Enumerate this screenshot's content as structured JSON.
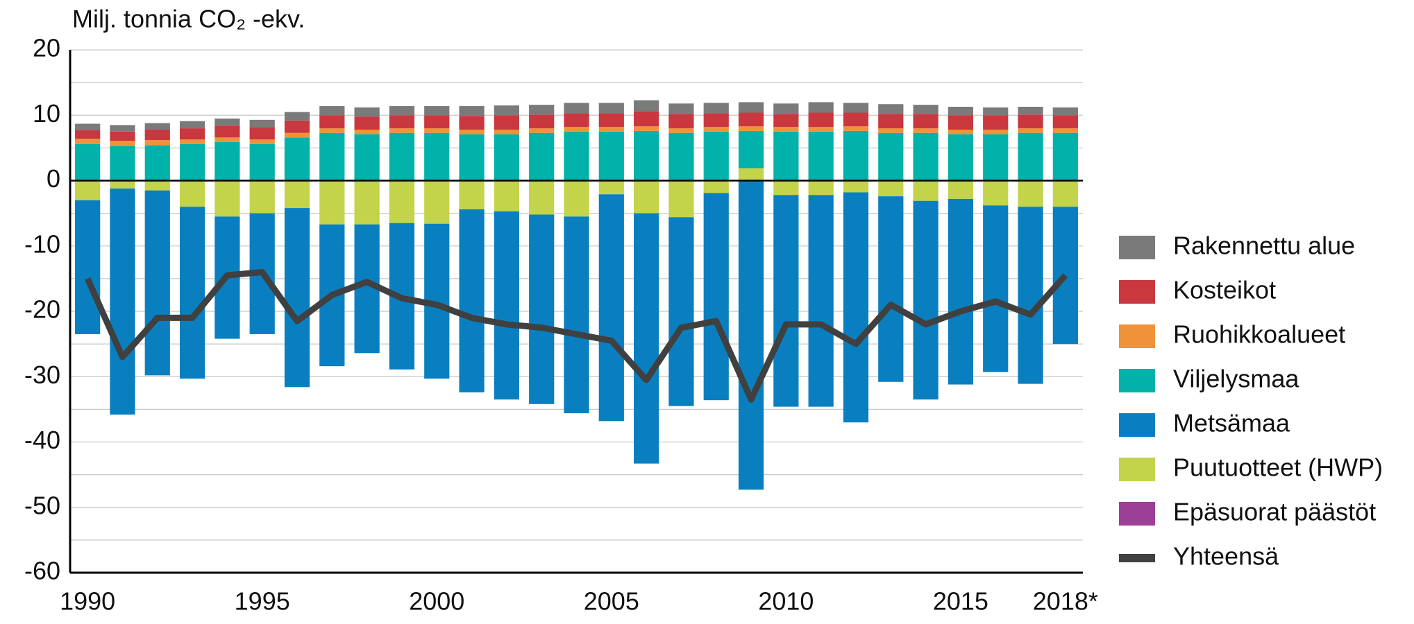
{
  "chart_data": {
    "type": "bar",
    "stacked": true,
    "title": "Milj. tonnia CO₂ -ekv.",
    "categories": [
      "1990",
      null,
      null,
      null,
      null,
      "1995",
      null,
      null,
      null,
      null,
      "2000",
      null,
      null,
      null,
      null,
      "2005",
      null,
      null,
      null,
      null,
      "2010",
      null,
      null,
      null,
      null,
      "2015",
      null,
      null,
      "2018*"
    ],
    "series": [
      {
        "name": "Rakennettu alue",
        "color": "#7a7a7a",
        "values": [
          1,
          1,
          1,
          1.1,
          1.1,
          1.1,
          1.3,
          1.4,
          1.4,
          1.4,
          1.4,
          1.5,
          1.5,
          1.5,
          1.6,
          1.6,
          1.7,
          1.6,
          1.6,
          1.6,
          1.6,
          1.6,
          1.5,
          1.5,
          1.4,
          1.3,
          1.2,
          1.2,
          1.2
        ]
      },
      {
        "name": "Kosteikot",
        "color": "#c9373f",
        "values": [
          1.3,
          1.4,
          1.6,
          1.7,
          1.8,
          1.9,
          1.9,
          2,
          2,
          2,
          2,
          2.1,
          2.2,
          2.1,
          2.1,
          2.1,
          2.3,
          2.2,
          2.1,
          2.1,
          2,
          2.2,
          2.1,
          2.2,
          2.2,
          2.2,
          2.2,
          2.1,
          2
        ]
      },
      {
        "name": "Ruohikkoalueet",
        "color": "#f0923a",
        "values": [
          0.8,
          0.8,
          0.8,
          0.7,
          0.7,
          0.7,
          0.7,
          0.7,
          0.7,
          0.7,
          0.7,
          0.7,
          0.7,
          0.7,
          0.7,
          0.7,
          0.7,
          0.7,
          0.7,
          0.7,
          0.7,
          0.7,
          0.7,
          0.7,
          0.7,
          0.7,
          0.7,
          0.7,
          0.7
        ]
      },
      {
        "name": "Viljelysmaa",
        "color": "#00b2a9",
        "values": [
          5.5,
          5.2,
          5.3,
          5.5,
          5.8,
          5.5,
          6.5,
          7.2,
          7,
          7.2,
          7.2,
          7,
          7,
          7.2,
          7.4,
          7.4,
          7.5,
          7.2,
          7.4,
          5.7,
          7.4,
          7.4,
          7.5,
          7.2,
          7.2,
          7,
          7,
          7.2,
          7.2
        ]
      },
      {
        "name": "Metsämaa",
        "color": "#0a7fc0",
        "values": [
          -20.5,
          -34.6,
          -28.3,
          -26.3,
          -18.7,
          -18.5,
          -27.4,
          -21.7,
          -19.7,
          -22.4,
          -23.7,
          -28,
          -28.8,
          -29,
          -30.1,
          -34.7,
          -38.3,
          -28.9,
          -31.7,
          -47.3,
          -32.4,
          -32.4,
          -35.2,
          -28.4,
          -30.4,
          -28.4,
          -25.5,
          -27.1,
          -21
        ]
      },
      {
        "name": "Puutuotteet (HWP)",
        "color": "#c3d34a",
        "values": [
          -3,
          -1.2,
          -1.5,
          -4,
          -5.5,
          -5,
          -4.2,
          -6.7,
          -6.7,
          -6.5,
          -6.6,
          -4.4,
          -4.7,
          -5.2,
          -5.5,
          -2.1,
          -5,
          -5.6,
          -1.9,
          1.8,
          -2.2,
          -2.2,
          -1.8,
          -2.4,
          -3.1,
          -2.8,
          -3.8,
          -4,
          -4
        ]
      },
      {
        "name": "Epäsuorat päästöt",
        "color": "#9b3f97",
        "values": [
          0.1,
          0.1,
          0.1,
          0.1,
          0.1,
          0.1,
          0.1,
          0.1,
          0.1,
          0.1,
          0.1,
          0.1,
          0.1,
          0.1,
          0.1,
          0.1,
          0.1,
          0.1,
          0.1,
          0.1,
          0.1,
          0.1,
          0.1,
          0.1,
          0.1,
          0.1,
          0.1,
          0.1,
          0.1
        ]
      },
      {
        "name": "Yhteensä",
        "color": "#404040",
        "type": "line",
        "values": [
          -15,
          -27,
          -21,
          -21,
          -14.5,
          -14,
          -21.5,
          -17.5,
          -15.5,
          -18,
          -19,
          -21,
          -22,
          -22.5,
          -23.5,
          -24.5,
          -30.5,
          -22.5,
          -21.5,
          -33.5,
          -22,
          -22,
          -25,
          -19,
          -22,
          -20,
          -18.5,
          -20.5,
          -14.5
        ]
      }
    ],
    "ylim": [
      -60,
      20
    ],
    "yticks": [
      -60,
      -50,
      -40,
      -30,
      -20,
      -10,
      0,
      10,
      20
    ],
    "minor_yticks": [
      -55,
      -45,
      -35,
      -25,
      -15,
      -5,
      5,
      15
    ],
    "grid": true,
    "legend": "right"
  }
}
